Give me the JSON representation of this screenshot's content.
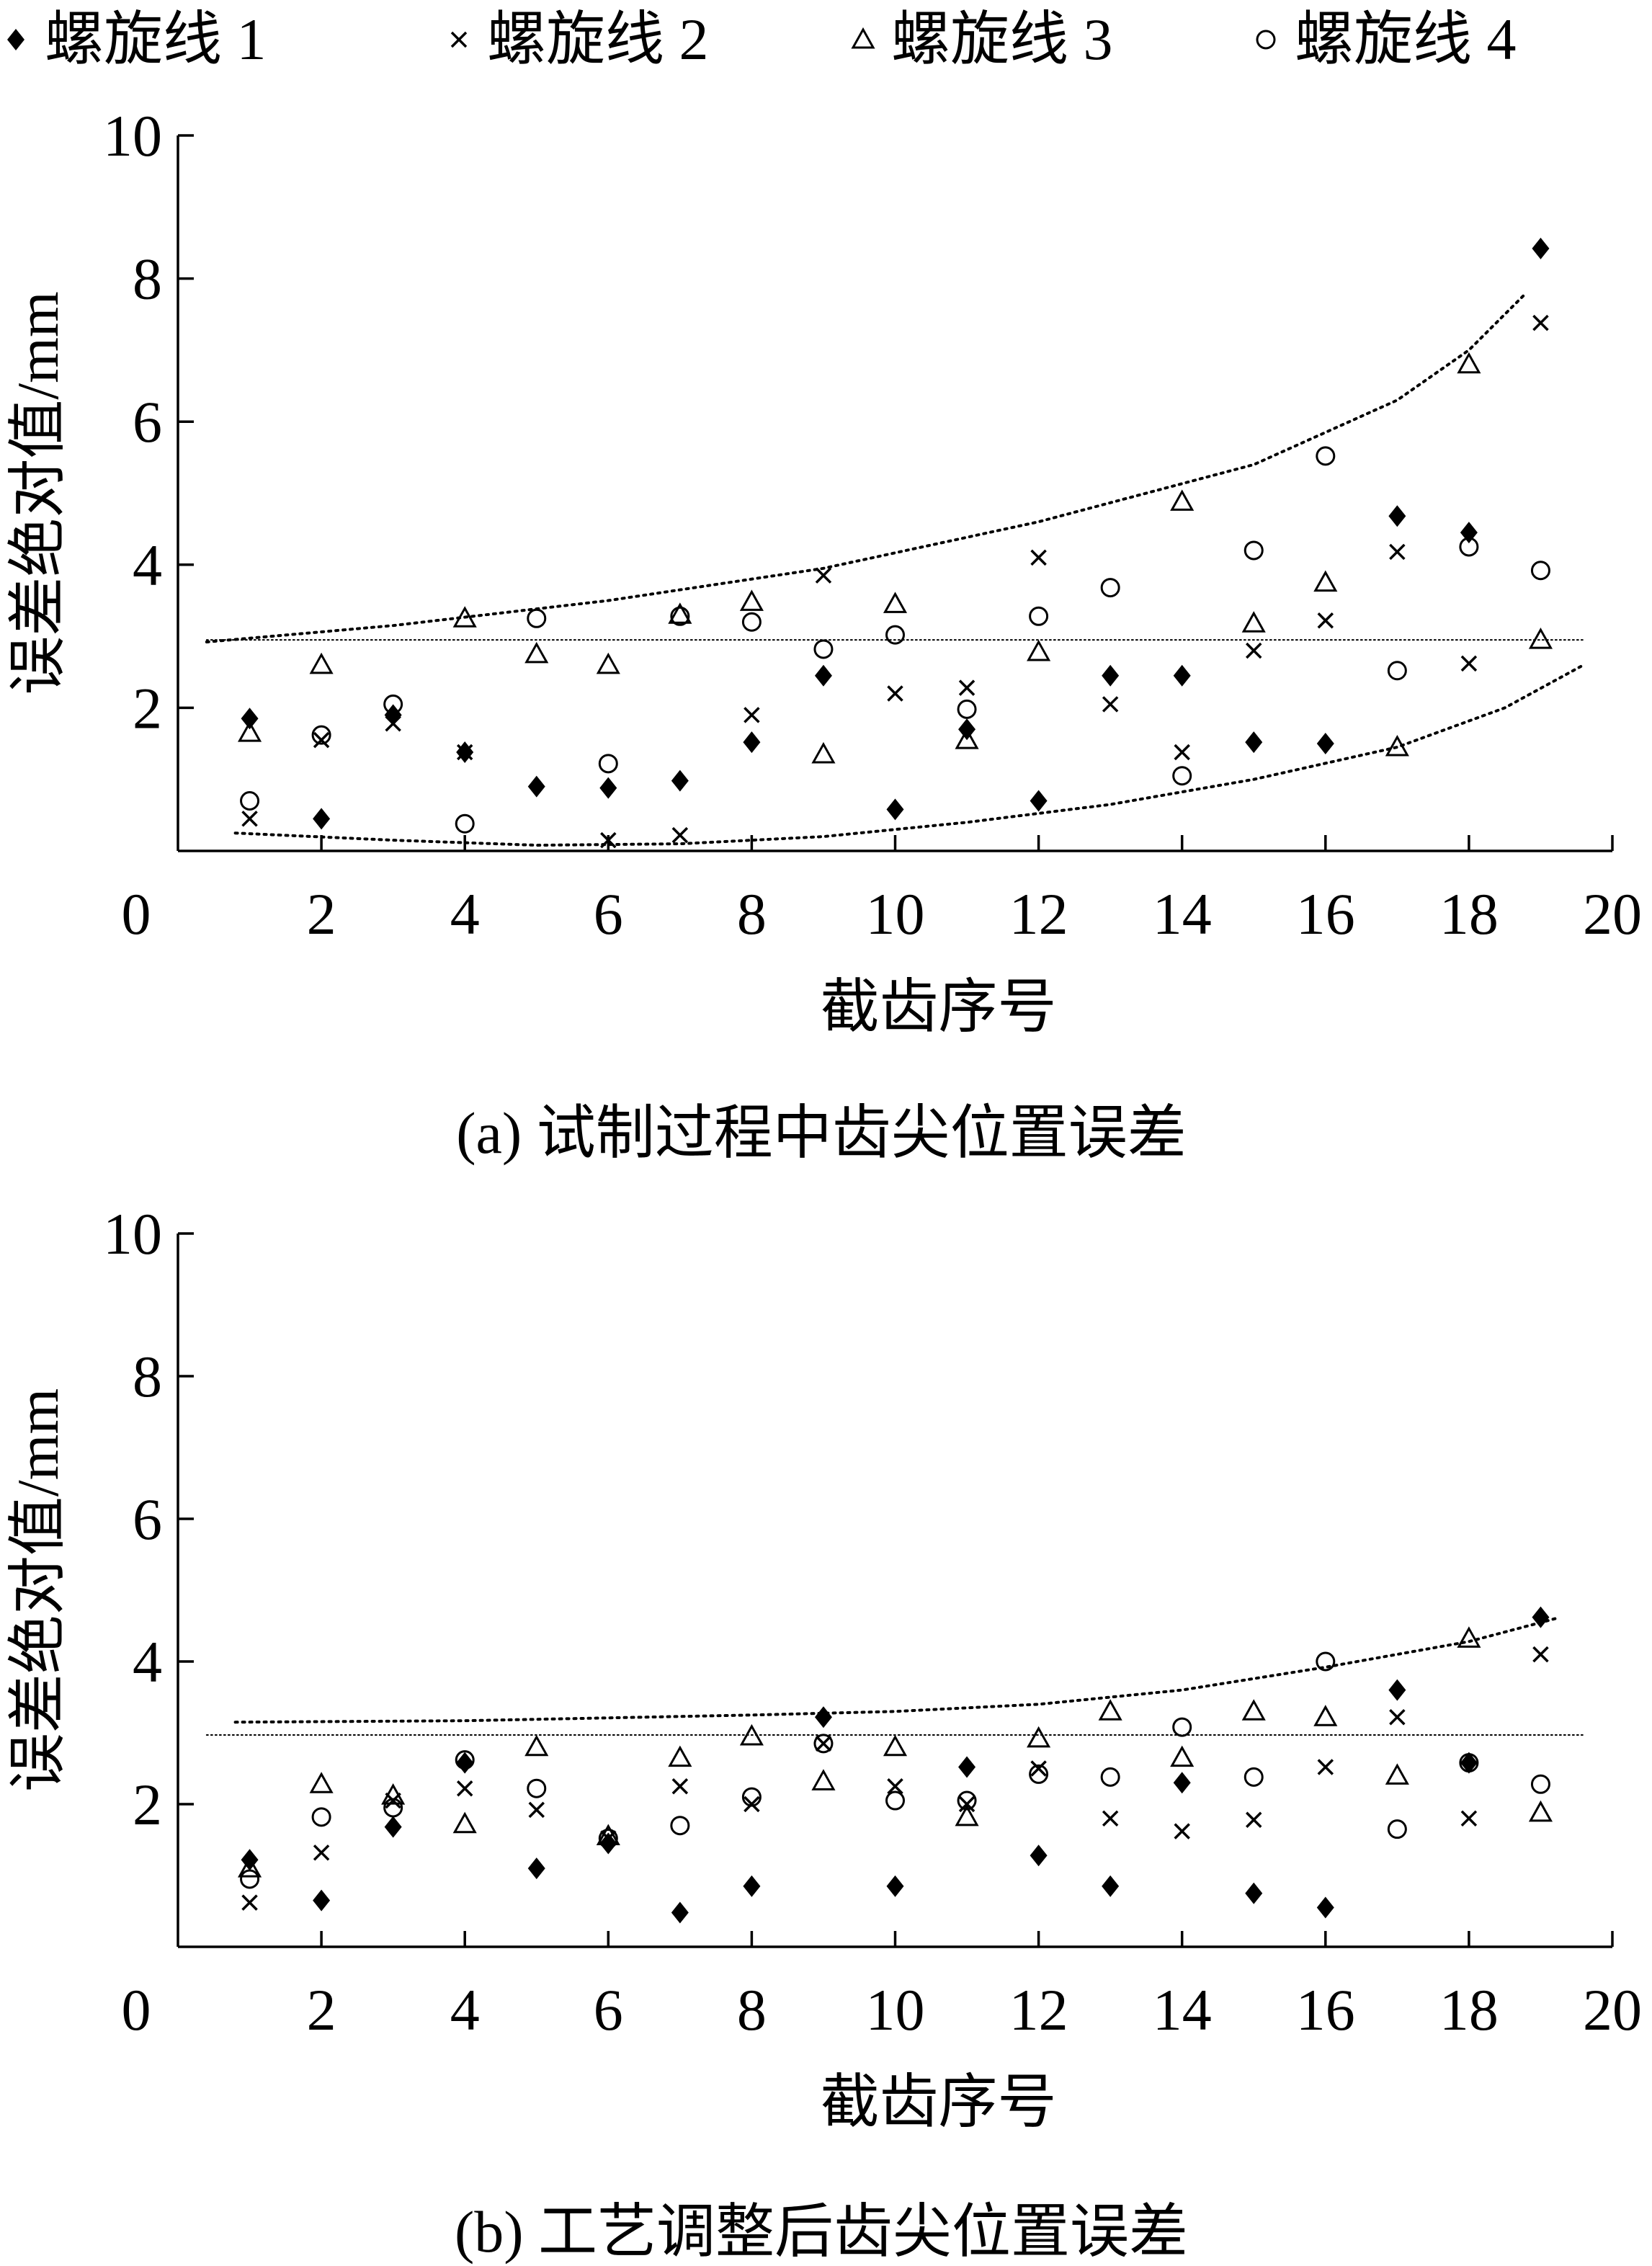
{
  "legend": {
    "placement": "top",
    "entries": [
      {
        "label": "螺旋线 1",
        "marker": "diamond-filled"
      },
      {
        "label": "螺旋线 2",
        "marker": "cross"
      },
      {
        "label": "螺旋线 3",
        "marker": "triangle-open"
      },
      {
        "label": "螺旋线 4",
        "marker": "circle-open"
      }
    ]
  },
  "chart_data": [
    {
      "type": "scatter",
      "caption": "(a)  试制过程中齿尖位置误差",
      "xlabel": "截齿序号",
      "ylabel": "误差绝对值/mm",
      "xlim": [
        0,
        20
      ],
      "ylim": [
        0,
        10
      ],
      "xticks": [
        0,
        2,
        4,
        6,
        8,
        10,
        12,
        14,
        16,
        18,
        20
      ],
      "yticks": [
        2,
        4,
        6,
        8,
        10
      ],
      "grid": false,
      "x": [
        1,
        2,
        3,
        4,
        5,
        6,
        7,
        8,
        9,
        10,
        11,
        12,
        13,
        14,
        15,
        16,
        17,
        18,
        19
      ],
      "series": [
        {
          "name": "螺旋线 1",
          "marker": "diamond-filled",
          "values": [
            1.85,
            0.45,
            1.9,
            1.38,
            0.9,
            0.88,
            0.98,
            1.52,
            2.45,
            0.58,
            1.7,
            0.7,
            2.45,
            2.45,
            1.52,
            1.5,
            4.68,
            4.45,
            8.42
          ]
        },
        {
          "name": "螺旋线 2",
          "marker": "cross",
          "values": [
            0.45,
            1.55,
            1.78,
            1.38,
            null,
            0.15,
            0.22,
            1.9,
            3.85,
            2.2,
            2.28,
            4.1,
            2.05,
            1.38,
            2.8,
            3.22,
            4.18,
            2.62,
            7.38
          ]
        },
        {
          "name": "螺旋线 3",
          "marker": "triangle-open",
          "values": [
            1.65,
            2.6,
            null,
            3.25,
            2.75,
            2.6,
            3.3,
            3.48,
            1.35,
            3.45,
            1.55,
            2.78,
            null,
            4.88,
            3.18,
            3.75,
            1.45,
            6.8,
            2.95
          ]
        },
        {
          "name": "螺旋线 4",
          "marker": "circle-open",
          "values": [
            0.7,
            1.62,
            2.05,
            0.38,
            3.25,
            1.22,
            3.28,
            3.2,
            2.82,
            3.02,
            1.98,
            3.28,
            3.68,
            1.05,
            4.2,
            5.52,
            2.52,
            4.25,
            3.92
          ]
        }
      ],
      "reference_lines": [
        {
          "style": "dotted",
          "kind": "horizontal",
          "y": 2.95,
          "x_range": [
            0.4,
            19.6
          ]
        },
        {
          "style": "dotted",
          "kind": "curve",
          "points": [
            [
              0.4,
              2.92
            ],
            [
              3,
              3.15
            ],
            [
              6,
              3.5
            ],
            [
              9,
              3.95
            ],
            [
              12,
              4.6
            ],
            [
              15,
              5.4
            ],
            [
              17,
              6.3
            ],
            [
              18,
              7.0
            ],
            [
              18.8,
              7.8
            ]
          ]
        },
        {
          "style": "dotted",
          "kind": "curve",
          "points": [
            [
              0.8,
              0.25
            ],
            [
              3,
              0.15
            ],
            [
              5,
              0.08
            ],
            [
              7,
              0.1
            ],
            [
              9,
              0.2
            ],
            [
              11,
              0.4
            ],
            [
              13,
              0.65
            ],
            [
              15,
              1.0
            ],
            [
              17,
              1.45
            ],
            [
              18.5,
              2.0
            ],
            [
              19.6,
              2.6
            ]
          ]
        }
      ]
    },
    {
      "type": "scatter",
      "caption": "(b)  工艺调整后齿尖位置误差",
      "xlabel": "截齿序号",
      "ylabel": "误差绝对值/mm",
      "xlim": [
        0,
        20
      ],
      "ylim": [
        0,
        10
      ],
      "xticks": [
        0,
        2,
        4,
        6,
        8,
        10,
        12,
        14,
        16,
        18,
        20
      ],
      "yticks": [
        2,
        4,
        6,
        8,
        10
      ],
      "grid": false,
      "x": [
        1,
        2,
        3,
        4,
        5,
        6,
        7,
        8,
        9,
        10,
        11,
        12,
        13,
        14,
        15,
        16,
        17,
        18,
        19
      ],
      "series": [
        {
          "name": "螺旋线 1",
          "marker": "diamond-filled",
          "values": [
            1.22,
            0.65,
            1.68,
            2.58,
            1.1,
            1.45,
            0.48,
            0.85,
            3.22,
            0.85,
            2.52,
            1.28,
            0.85,
            2.3,
            0.75,
            0.55,
            3.6,
            2.58,
            4.62
          ]
        },
        {
          "name": "螺旋线 2",
          "marker": "cross",
          "values": [
            0.62,
            1.32,
            2.05,
            2.22,
            1.92,
            1.52,
            2.25,
            2.0,
            2.85,
            2.25,
            2.0,
            2.5,
            1.8,
            1.62,
            1.78,
            2.52,
            3.22,
            1.8,
            4.1
          ]
        },
        {
          "name": "螺旋线 3",
          "marker": "triangle-open",
          "values": [
            1.1,
            2.28,
            2.12,
            1.72,
            2.8,
            1.55,
            2.65,
            2.95,
            2.32,
            2.8,
            1.82,
            2.92,
            3.3,
            2.65,
            3.3,
            3.22,
            2.4,
            4.32,
            1.88
          ]
        },
        {
          "name": "螺旋线 4",
          "marker": "circle-open",
          "values": [
            0.95,
            1.82,
            1.95,
            2.62,
            2.22,
            1.52,
            1.7,
            2.1,
            2.85,
            2.05,
            2.05,
            2.42,
            2.38,
            3.08,
            2.38,
            4.0,
            1.65,
            2.58,
            2.28
          ]
        }
      ],
      "reference_lines": [
        {
          "style": "dotted",
          "kind": "horizontal",
          "y": 2.97,
          "x_range": [
            0.4,
            19.6
          ]
        },
        {
          "style": "dotted",
          "kind": "curve",
          "points": [
            [
              0.8,
              3.15
            ],
            [
              4,
              3.17
            ],
            [
              8,
              3.25
            ],
            [
              10,
              3.3
            ],
            [
              12,
              3.4
            ],
            [
              14,
              3.6
            ],
            [
              16,
              3.92
            ],
            [
              18,
              4.28
            ],
            [
              19.2,
              4.6
            ]
          ]
        }
      ]
    }
  ]
}
